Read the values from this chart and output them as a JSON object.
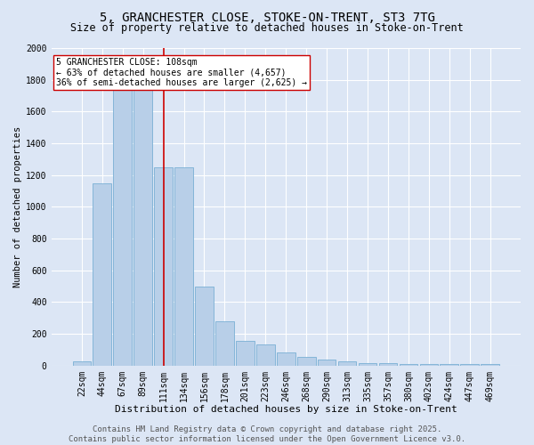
{
  "title_line1": "5, GRANCHESTER CLOSE, STOKE-ON-TRENT, ST3 7TG",
  "title_line2": "Size of property relative to detached houses in Stoke-on-Trent",
  "xlabel": "Distribution of detached houses by size in Stoke-on-Trent",
  "ylabel": "Number of detached properties",
  "bar_labels": [
    "22sqm",
    "44sqm",
    "67sqm",
    "89sqm",
    "111sqm",
    "134sqm",
    "156sqm",
    "178sqm",
    "201sqm",
    "223sqm",
    "246sqm",
    "268sqm",
    "290sqm",
    "313sqm",
    "335sqm",
    "357sqm",
    "380sqm",
    "402sqm",
    "424sqm",
    "447sqm",
    "469sqm"
  ],
  "bar_values": [
    25,
    1150,
    1950,
    1850,
    1250,
    1250,
    500,
    280,
    155,
    135,
    85,
    55,
    35,
    25,
    18,
    15,
    12,
    10,
    8,
    8,
    8
  ],
  "bar_color": "#b8cfe8",
  "bar_edge_color": "#7aafd4",
  "background_color": "#dce6f5",
  "grid_color": "#ffffff",
  "vline_color": "#cc0000",
  "vline_x": 4,
  "annotation_text": "5 GRANCHESTER CLOSE: 108sqm\n← 63% of detached houses are smaller (4,657)\n36% of semi-detached houses are larger (2,625) →",
  "annotation_box_facecolor": "#ffffff",
  "annotation_box_edgecolor": "#cc0000",
  "ylim": [
    0,
    2000
  ],
  "yticks": [
    0,
    200,
    400,
    600,
    800,
    1000,
    1200,
    1400,
    1600,
    1800,
    2000
  ],
  "footer_text": "Contains HM Land Registry data © Crown copyright and database right 2025.\nContains public sector information licensed under the Open Government Licence v3.0.",
  "title_fontsize": 10,
  "subtitle_fontsize": 8.5,
  "xlabel_fontsize": 8,
  "ylabel_fontsize": 7.5,
  "tick_fontsize": 7,
  "annotation_fontsize": 7,
  "footer_fontsize": 6.5
}
